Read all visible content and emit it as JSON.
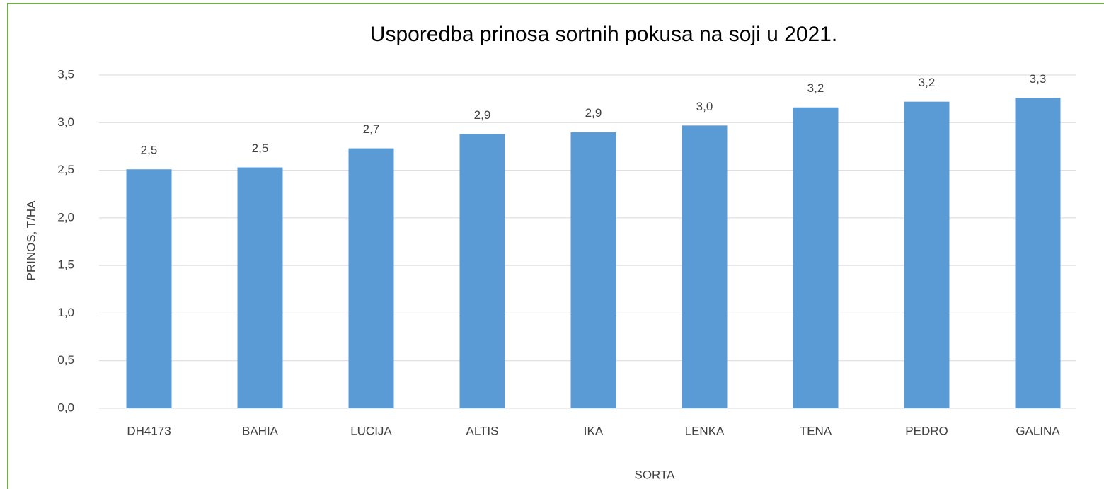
{
  "chart_data": {
    "type": "bar",
    "title": "Usporedba prinosa sortnih pokusa na soji u 2021.",
    "x_label": "SORTA",
    "y_label": "PRINOS, T/HA",
    "categories": [
      "DH4173",
      "BAHIA",
      "LUCIJA",
      "ALTIS",
      "IKA",
      "LENKA",
      "TENA",
      "PEDRO",
      "GALINA"
    ],
    "values": [
      2.51,
      2.53,
      2.73,
      2.88,
      2.9,
      2.97,
      3.16,
      3.22,
      3.26
    ],
    "value_labels": [
      "2,5",
      "2,5",
      "2,7",
      "2,9",
      "2,9",
      "3,0",
      "3,2",
      "3,2",
      "3,3"
    ],
    "color": "#5b9bd5",
    "ylim": [
      0,
      3.5
    ],
    "yticks": [
      {
        "value": 0,
        "label": "0,0"
      },
      {
        "value": 0.5,
        "label": "0,5"
      },
      {
        "value": 1,
        "label": "1,0"
      },
      {
        "value": 1.5,
        "label": "1,5"
      },
      {
        "value": 2,
        "label": "2,0"
      },
      {
        "value": 2.5,
        "label": "2,5"
      },
      {
        "value": 3,
        "label": "3,0"
      },
      {
        "value": 3.5,
        "label": "3,5"
      }
    ],
    "grid": true
  }
}
